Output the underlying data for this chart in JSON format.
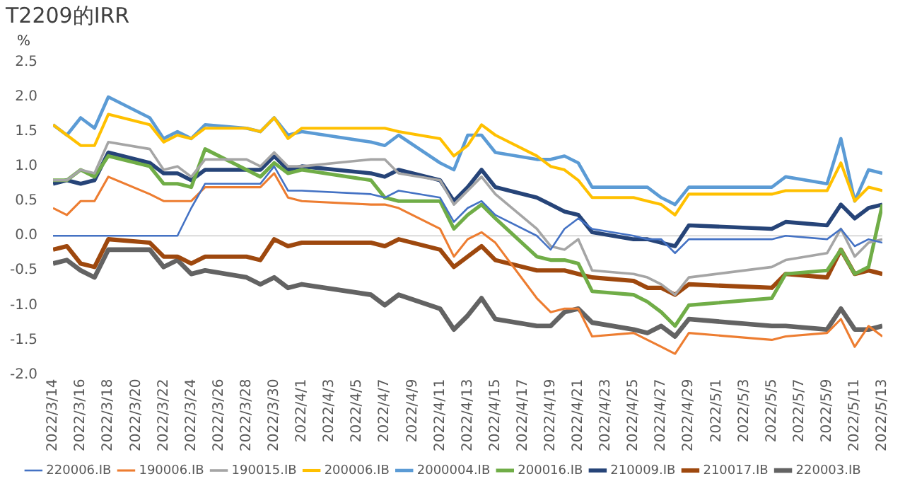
{
  "chart_data": {
    "type": "line",
    "title": "T2209的IRR",
    "ylabel": "%",
    "x": [
      "2022-03-14",
      "2022-03-15",
      "2022-03-16",
      "2022-03-17",
      "2022-03-18",
      "2022-03-21",
      "2022-03-22",
      "2022-03-23",
      "2022-03-24",
      "2022-03-25",
      "2022-03-28",
      "2022-03-29",
      "2022-03-30",
      "2022-03-31",
      "2022-04-01",
      "2022-04-06",
      "2022-04-07",
      "2022-04-08",
      "2022-04-11",
      "2022-04-12",
      "2022-04-13",
      "2022-04-14",
      "2022-04-15",
      "2022-04-18",
      "2022-04-19",
      "2022-04-20",
      "2022-04-21",
      "2022-04-22",
      "2022-04-25",
      "2022-04-26",
      "2022-04-27",
      "2022-04-28",
      "2022-04-29",
      "2022-05-05",
      "2022-05-06",
      "2022-05-09",
      "2022-05-10",
      "2022-05-11",
      "2022-05-12",
      "2022-05-13"
    ],
    "series": [
      {
        "name": "220006.IB",
        "color": "#4472c4",
        "values": [
          0,
          0,
          0,
          0,
          0,
          0,
          0,
          0,
          0.4,
          0.75,
          0.75,
          0.75,
          1.0,
          0.65,
          0.65,
          0.6,
          0.55,
          0.65,
          0.55,
          0.2,
          0.4,
          0.5,
          0.3,
          0,
          -0.2,
          0.1,
          0.25,
          0.1,
          0,
          -0.05,
          -0.05,
          -0.25,
          -0.05,
          -0.05,
          0,
          -0.05,
          0.1,
          -0.15,
          -0.05,
          -0.1
        ]
      },
      {
        "name": "190006.IB",
        "color": "#ed7d31",
        "values": [
          0.4,
          0.3,
          0.5,
          0.5,
          0.85,
          0.6,
          0.5,
          0.5,
          0.5,
          0.7,
          0.7,
          0.7,
          0.9,
          0.55,
          0.5,
          0.45,
          0.45,
          0.4,
          0.1,
          -0.3,
          -0.05,
          0.05,
          -0.1,
          -0.9,
          -1.1,
          -1.05,
          -1.05,
          -1.45,
          -1.4,
          -1.5,
          -1.6,
          -1.7,
          -1.4,
          -1.5,
          -1.45,
          -1.4,
          -1.2,
          -1.6,
          -1.3,
          -1.45
        ]
      },
      {
        "name": "190015.IB",
        "color": "#a5a5a5",
        "values": [
          0.8,
          0.8,
          0.95,
          0.9,
          1.35,
          1.25,
          0.95,
          1.0,
          0.85,
          1.1,
          1.1,
          1.0,
          1.2,
          1.0,
          1.0,
          1.1,
          1.1,
          0.9,
          0.8,
          0.45,
          0.65,
          0.85,
          0.6,
          0.1,
          -0.15,
          -0.2,
          -0.05,
          -0.5,
          -0.55,
          -0.6,
          -0.7,
          -0.85,
          -0.6,
          -0.45,
          -0.35,
          -0.25,
          0.1,
          -0.3,
          -0.1,
          -0.05
        ]
      },
      {
        "name": "200006.IB",
        "color": "#ffc000",
        "values": [
          1.6,
          1.45,
          1.3,
          1.3,
          1.75,
          1.6,
          1.35,
          1.45,
          1.4,
          1.55,
          1.55,
          1.5,
          1.7,
          1.4,
          1.55,
          1.55,
          1.55,
          1.5,
          1.4,
          1.15,
          1.3,
          1.6,
          1.45,
          1.15,
          1.0,
          0.95,
          0.8,
          0.55,
          0.55,
          0.5,
          0.45,
          0.3,
          0.6,
          0.6,
          0.65,
          0.65,
          1.05,
          0.5,
          0.7,
          0.65
        ]
      },
      {
        "name": "2000004.IB",
        "color": "#5b9bd5",
        "values": [
          1.6,
          1.45,
          1.7,
          1.55,
          2.0,
          1.7,
          1.4,
          1.5,
          1.4,
          1.6,
          1.55,
          1.5,
          1.7,
          1.45,
          1.5,
          1.35,
          1.3,
          1.45,
          1.05,
          0.95,
          1.45,
          1.45,
          1.2,
          1.1,
          1.1,
          1.15,
          1.05,
          0.7,
          0.7,
          0.7,
          0.55,
          0.45,
          0.7,
          0.7,
          0.85,
          0.75,
          1.4,
          0.5,
          0.95,
          0.9
        ]
      },
      {
        "name": "200016.IB",
        "color": "#70ad47",
        "values": [
          0.8,
          0.8,
          0.95,
          0.85,
          1.15,
          1.0,
          0.75,
          0.75,
          0.7,
          1.25,
          0.95,
          0.85,
          1.05,
          0.9,
          0.95,
          0.8,
          0.55,
          0.5,
          0.5,
          0.1,
          0.3,
          0.45,
          0.25,
          -0.3,
          -0.35,
          -0.35,
          -0.4,
          -0.8,
          -0.85,
          -0.95,
          -1.1,
          -1.3,
          -1.0,
          -0.9,
          -0.55,
          -0.5,
          -0.2,
          -0.55,
          -0.45,
          0.45
        ]
      },
      {
        "name": "210009.IB",
        "color": "#264478",
        "values": [
          0.75,
          0.8,
          0.75,
          0.8,
          1.2,
          1.05,
          0.9,
          0.9,
          0.8,
          0.95,
          0.95,
          0.95,
          1.15,
          0.95,
          1.0,
          0.9,
          0.85,
          0.95,
          0.8,
          0.5,
          0.7,
          0.95,
          0.7,
          0.55,
          0.45,
          0.35,
          0.3,
          0.05,
          -0.05,
          -0.05,
          -0.1,
          -0.15,
          0.15,
          0.1,
          0.2,
          0.15,
          0.45,
          0.25,
          0.4,
          0.45
        ]
      },
      {
        "name": "210017.IB",
        "color": "#9e480e",
        "values": [
          -0.2,
          -0.15,
          -0.4,
          -0.45,
          -0.05,
          -0.1,
          -0.3,
          -0.3,
          -0.4,
          -0.3,
          -0.3,
          -0.35,
          -0.05,
          -0.15,
          -0.1,
          -0.1,
          -0.15,
          -0.05,
          -0.2,
          -0.45,
          -0.3,
          -0.15,
          -0.35,
          -0.5,
          -0.5,
          -0.5,
          -0.55,
          -0.6,
          -0.65,
          -0.75,
          -0.75,
          -0.85,
          -0.7,
          -0.75,
          -0.55,
          -0.6,
          -0.2,
          -0.55,
          -0.5,
          -0.55
        ]
      },
      {
        "name": "220003.IB",
        "color": "#636363",
        "values": [
          -0.4,
          -0.35,
          -0.5,
          -0.6,
          -0.2,
          -0.2,
          -0.45,
          -0.35,
          -0.55,
          -0.5,
          -0.6,
          -0.7,
          -0.6,
          -0.75,
          -0.7,
          -0.85,
          -1.0,
          -0.85,
          -1.05,
          -1.35,
          -1.15,
          -0.9,
          -1.2,
          -1.3,
          -1.3,
          -1.1,
          -1.05,
          -1.25,
          -1.35,
          -1.4,
          -1.3,
          -1.45,
          -1.2,
          -1.3,
          -1.3,
          -1.35,
          -1.05,
          -1.35,
          -1.35,
          -1.3
        ]
      }
    ],
    "xlim": [
      "2022-03-14",
      "2022-05-13"
    ],
    "xticks": [
      {
        "value": "2022-03-14",
        "label": "2022/3/14"
      },
      {
        "value": "2022-03-16",
        "label": "2022/3/16"
      },
      {
        "value": "2022-03-18",
        "label": "2022/3/18"
      },
      {
        "value": "2022-03-20",
        "label": "2022/3/20"
      },
      {
        "value": "2022-03-22",
        "label": "2022/3/22"
      },
      {
        "value": "2022-03-24",
        "label": "2022/3/24"
      },
      {
        "value": "2022-03-26",
        "label": "2022/3/26"
      },
      {
        "value": "2022-03-28",
        "label": "2022/3/28"
      },
      {
        "value": "2022-03-30",
        "label": "2022/3/30"
      },
      {
        "value": "2022-04-01",
        "label": "2022/4/1"
      },
      {
        "value": "2022-04-03",
        "label": "2022/4/3"
      },
      {
        "value": "2022-04-05",
        "label": "2022/4/5"
      },
      {
        "value": "2022-04-07",
        "label": "2022/4/7"
      },
      {
        "value": "2022-04-09",
        "label": "2022/4/9"
      },
      {
        "value": "2022-04-11",
        "label": "2022/4/11"
      },
      {
        "value": "2022-04-13",
        "label": "2022/4/13"
      },
      {
        "value": "2022-04-15",
        "label": "2022/4/15"
      },
      {
        "value": "2022-04-17",
        "label": "2022/4/17"
      },
      {
        "value": "2022-04-19",
        "label": "2022/4/19"
      },
      {
        "value": "2022-04-21",
        "label": "2022/4/21"
      },
      {
        "value": "2022-04-23",
        "label": "2022/4/23"
      },
      {
        "value": "2022-04-25",
        "label": "2022/4/25"
      },
      {
        "value": "2022-04-27",
        "label": "2022/4/27"
      },
      {
        "value": "2022-04-29",
        "label": "2022/4/29"
      },
      {
        "value": "2022-05-01",
        "label": "2022/5/1"
      },
      {
        "value": "2022-05-03",
        "label": "2022/5/3"
      },
      {
        "value": "2022-05-05",
        "label": "2022/5/5"
      },
      {
        "value": "2022-05-07",
        "label": "2022/5/7"
      },
      {
        "value": "2022-05-09",
        "label": "2022/5/9"
      },
      {
        "value": "2022-05-11",
        "label": "2022/5/11"
      },
      {
        "value": "2022-05-13",
        "label": "2022/5/13"
      }
    ],
    "ylim": [
      -2.0,
      2.5
    ],
    "yticks": [
      {
        "value": -2,
        "label": "-2.0"
      },
      {
        "value": -1.5,
        "label": "-1.5"
      },
      {
        "value": -1,
        "label": "-1.0"
      },
      {
        "value": -0.5,
        "label": "-0.5"
      },
      {
        "value": 0,
        "label": "0.0"
      },
      {
        "value": 0.5,
        "label": "0.5"
      },
      {
        "value": 1,
        "label": "1.0"
      },
      {
        "value": 1.5,
        "label": "1.5"
      },
      {
        "value": 2,
        "label": "2.0"
      },
      {
        "value": 2.5,
        "label": "2.5"
      }
    ],
    "ref_lines": [
      {
        "axis": "y",
        "value": 0,
        "color": "#d9d9d9"
      }
    ],
    "grid": false,
    "legend": "bottom",
    "marker": "none",
    "line_style": "solid"
  }
}
